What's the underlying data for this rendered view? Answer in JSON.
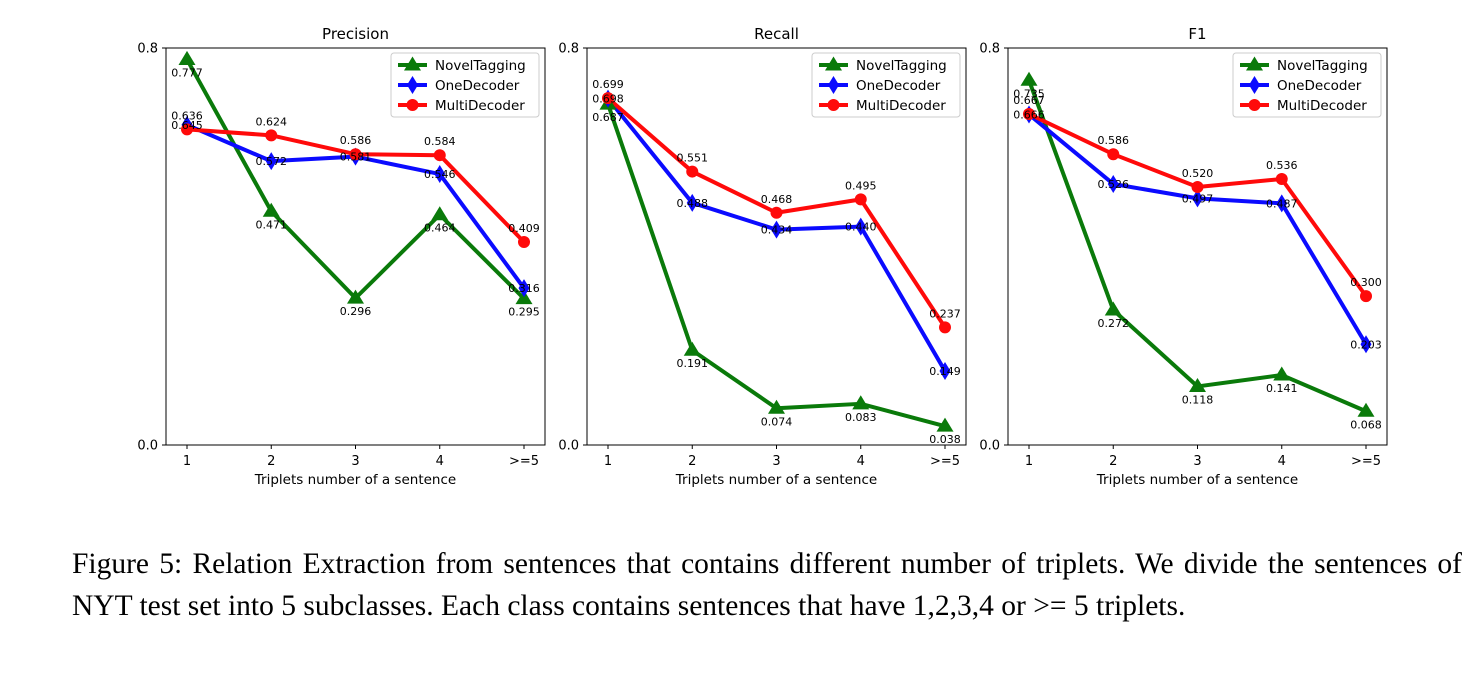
{
  "chart_data": [
    {
      "type": "line",
      "title": "Precision",
      "xlabel": "Triplets number of a sentence",
      "ylabel": "",
      "categories": [
        "1",
        "2",
        "3",
        "4",
        ">=5"
      ],
      "ylim": [
        0.0,
        0.8
      ],
      "yticks": [
        "0.0",
        "0.8"
      ],
      "legend_position": "top-right",
      "series": [
        {
          "name": "NovelTagging",
          "values": [
            0.777,
            0.471,
            0.296,
            0.464,
            0.295
          ],
          "labels": [
            "0.777",
            "0.471",
            "0.296",
            "0.464",
            "0.295"
          ],
          "color": "#0a7a0a",
          "marker": "triangle"
        },
        {
          "name": "OneDecoder",
          "values": [
            0.645,
            0.572,
            0.581,
            0.546,
            0.316
          ],
          "labels": [
            "0.645",
            "0.572",
            "0.581",
            "0.546",
            "0.316"
          ],
          "color": "#0b0bff",
          "marker": "diamond"
        },
        {
          "name": "MultiDecoder",
          "values": [
            0.636,
            0.624,
            0.586,
            0.584,
            0.409
          ],
          "labels": [
            "0.636",
            "0.624",
            "0.586",
            "0.584",
            "0.409"
          ],
          "color": "#ff0a0a",
          "marker": "circle"
        }
      ]
    },
    {
      "type": "line",
      "title": "Recall",
      "xlabel": "Triplets number of a sentence",
      "ylabel": "",
      "categories": [
        "1",
        "2",
        "3",
        "4",
        ">=5"
      ],
      "ylim": [
        0.0,
        0.8
      ],
      "yticks": [
        "0.0",
        "0.8"
      ],
      "legend_position": "top-right",
      "series": [
        {
          "name": "NovelTagging",
          "values": [
            0.687,
            0.191,
            0.074,
            0.083,
            0.038
          ],
          "labels": [
            "0.687",
            "0.191",
            "0.074",
            "0.083",
            "0.038"
          ],
          "color": "#0a7a0a",
          "marker": "triangle"
        },
        {
          "name": "OneDecoder",
          "values": [
            0.698,
            0.488,
            0.434,
            0.44,
            0.149
          ],
          "labels": [
            "0.698",
            "0.488",
            "0.434",
            "0.440",
            "0.149"
          ],
          "color": "#0b0bff",
          "marker": "diamond"
        },
        {
          "name": "MultiDecoder",
          "values": [
            0.699,
            0.551,
            0.468,
            0.495,
            0.237
          ],
          "labels": [
            "0.699",
            "0.551",
            "0.468",
            "0.495",
            "0.237"
          ],
          "color": "#ff0a0a",
          "marker": "circle"
        }
      ]
    },
    {
      "type": "line",
      "title": "F1",
      "xlabel": "Triplets number of a sentence",
      "ylabel": "",
      "categories": [
        "1",
        "2",
        "3",
        "4",
        ">=5"
      ],
      "ylim": [
        0.0,
        0.8
      ],
      "yticks": [
        "0.0",
        "0.8"
      ],
      "legend_position": "top-right",
      "series": [
        {
          "name": "NovelTagging",
          "values": [
            0.735,
            0.272,
            0.118,
            0.141,
            0.068
          ],
          "labels": [
            "0.735",
            "0.272",
            "0.118",
            "0.141",
            "0.068"
          ],
          "color": "#0a7a0a",
          "marker": "triangle"
        },
        {
          "name": "OneDecoder",
          "values": [
            0.666,
            0.526,
            0.497,
            0.487,
            0.203
          ],
          "labels": [
            "0.666",
            "0.526",
            "0.497",
            "0.487",
            "0.203"
          ],
          "color": "#0b0bff",
          "marker": "diamond"
        },
        {
          "name": "MultiDecoder",
          "values": [
            0.667,
            0.586,
            0.52,
            0.536,
            0.3
          ],
          "labels": [
            "0.667",
            "0.586",
            "0.520",
            "0.536",
            "0.300"
          ],
          "color": "#ff0a0a",
          "marker": "circle"
        }
      ]
    }
  ],
  "caption": {
    "text": "Figure 5: Relation Extraction from sentences that contains different number of triplets. We divide the sentences of NYT test set into 5 subclasses. Each class contains sentences that have 1,2,3,4 or >= 5 triplets."
  }
}
